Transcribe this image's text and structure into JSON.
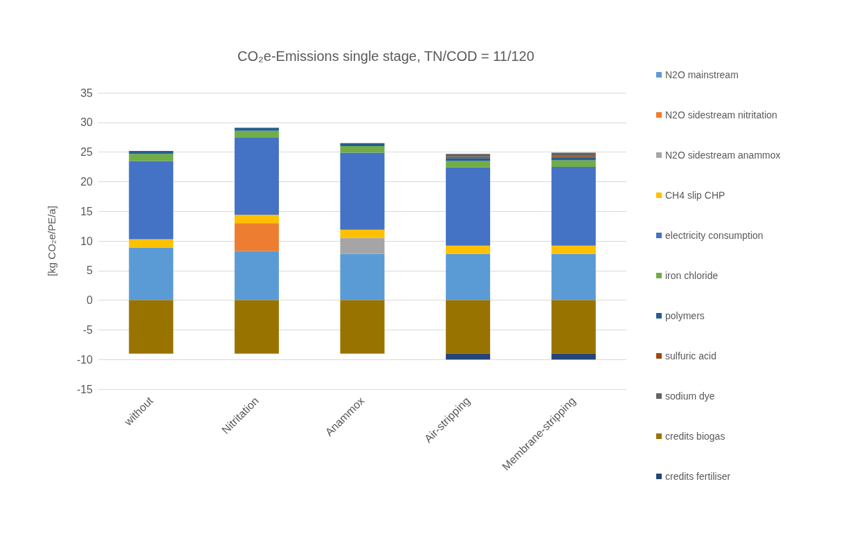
{
  "chart_data": {
    "type": "bar",
    "stacked": true,
    "title": "CO₂e-Emissions single stage, TN/COD = 11/120",
    "ylabel": "[kg CO₂e/PE/a]",
    "categories": [
      "without",
      "Nitritation",
      "Anammox",
      "Air-stripping",
      "Membrane-stripping"
    ],
    "series": [
      {
        "name": "N2O mainstream",
        "color": "#5b9bd5",
        "values": [
          8.9,
          8.3,
          7.8,
          7.8,
          7.8
        ]
      },
      {
        "name": "N2O sidestream nitritation",
        "color": "#ed7d31",
        "values": [
          null,
          4.7,
          null,
          null,
          null
        ]
      },
      {
        "name": "N2O sidestream anammox",
        "color": "#a5a5a5",
        "values": [
          null,
          null,
          2.7,
          null,
          null
        ]
      },
      {
        "name": "CH4 slip CHP",
        "color": "#ffc000",
        "values": [
          1.4,
          1.4,
          1.4,
          1.4,
          1.4
        ]
      },
      {
        "name": "electricity consumption",
        "color": "#4472c4",
        "values": [
          13.2,
          13.1,
          13.0,
          13.2,
          13.3
        ]
      },
      {
        "name": "iron chloride",
        "color": "#70ad47",
        "values": [
          1.2,
          1.1,
          1.1,
          1.1,
          1.1
        ]
      },
      {
        "name": "polymers",
        "color": "#255e91",
        "values": [
          0.5,
          0.5,
          0.5,
          0.5,
          0.5
        ]
      },
      {
        "name": "sulfuric acid",
        "color": "#9e480e",
        "values": [
          null,
          null,
          null,
          0.2,
          0.2
        ]
      },
      {
        "name": "sodium dye",
        "color": "#636363",
        "values": [
          null,
          null,
          null,
          0.5,
          0.6
        ]
      },
      {
        "name": "credits biogas",
        "color": "#997300",
        "values": [
          -9.0,
          -9.0,
          -9.0,
          -9.0,
          -9.0
        ]
      },
      {
        "name": "credits fertiliser",
        "color": "#264478",
        "values": [
          null,
          null,
          null,
          -1.0,
          -1.0
        ]
      }
    ],
    "ylim": [
      -15,
      35
    ],
    "yticks": [
      -15,
      -10,
      -5,
      0,
      5,
      10,
      15,
      20,
      25,
      30,
      35
    ],
    "grid": "y",
    "legend": "right"
  }
}
